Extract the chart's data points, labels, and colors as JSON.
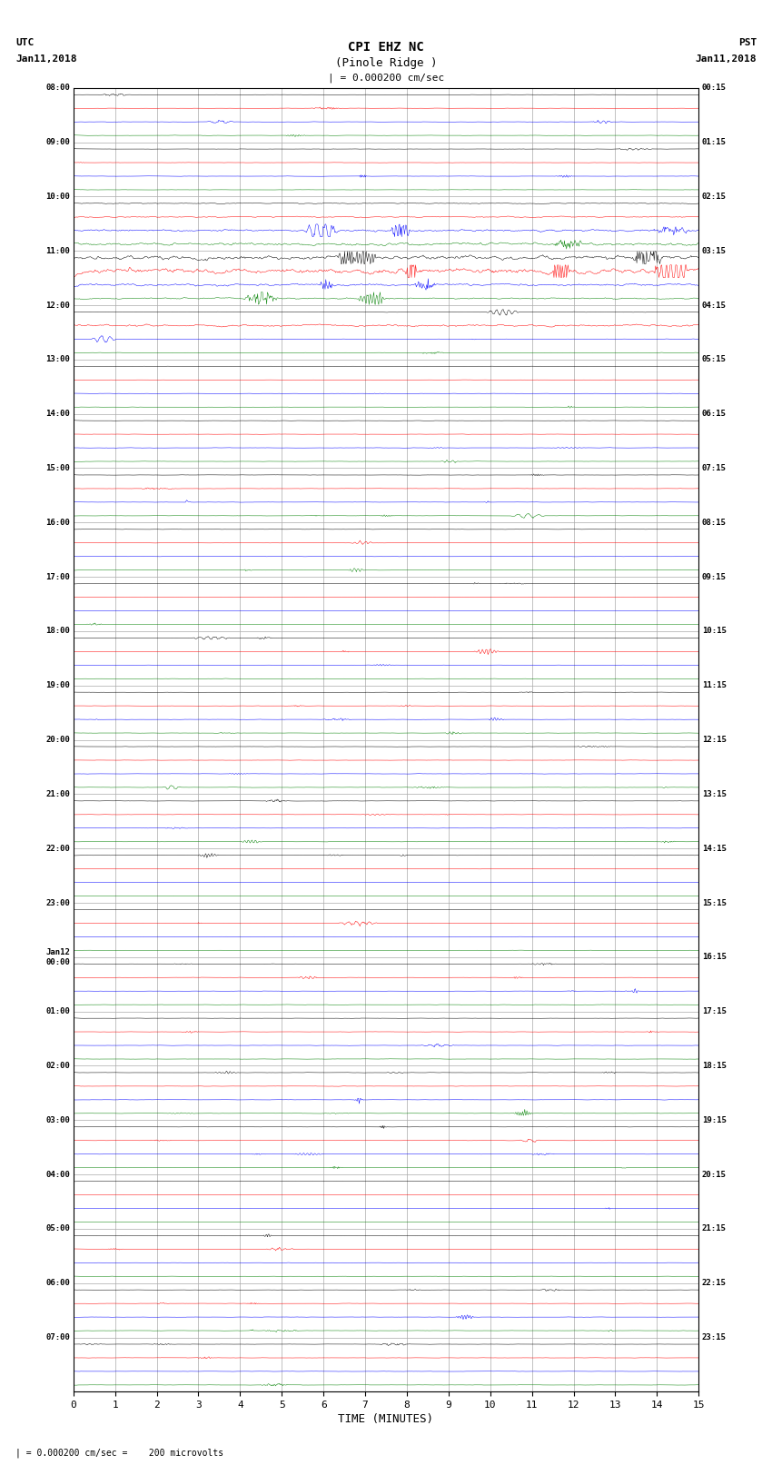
{
  "title_line1": "CPI EHZ NC",
  "title_line2": "(Pinole Ridge )",
  "scale_text": "| = 0.000200 cm/sec",
  "footer_text": "| = 0.000200 cm/sec =    200 microvolts",
  "xlabel": "TIME (MINUTES)",
  "xticks": [
    0,
    1,
    2,
    3,
    4,
    5,
    6,
    7,
    8,
    9,
    10,
    11,
    12,
    13,
    14,
    15
  ],
  "left_times": [
    "08:00",
    "09:00",
    "10:00",
    "11:00",
    "12:00",
    "13:00",
    "14:00",
    "15:00",
    "16:00",
    "17:00",
    "18:00",
    "19:00",
    "20:00",
    "21:00",
    "22:00",
    "23:00",
    "Jan12\n00:00",
    "01:00",
    "02:00",
    "03:00",
    "04:00",
    "05:00",
    "06:00",
    "07:00"
  ],
  "right_times": [
    "00:15",
    "01:15",
    "02:15",
    "03:15",
    "04:15",
    "05:15",
    "06:15",
    "07:15",
    "08:15",
    "09:15",
    "10:15",
    "11:15",
    "12:15",
    "13:15",
    "14:15",
    "15:15",
    "16:15",
    "17:15",
    "18:15",
    "19:15",
    "20:15",
    "21:15",
    "22:15",
    "23:15"
  ],
  "colors": [
    "black",
    "red",
    "blue",
    "green"
  ],
  "n_hours": 24,
  "minutes": 15,
  "fig_width": 8.5,
  "fig_height": 16.13,
  "dpi": 100,
  "background_color": "white",
  "grid_color": "#aaaaaa"
}
